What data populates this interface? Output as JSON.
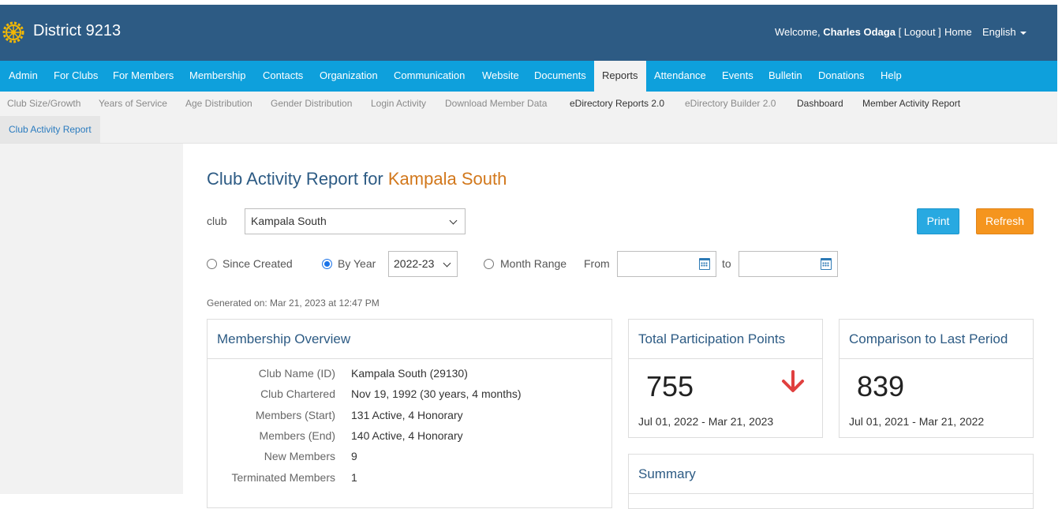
{
  "header": {
    "district_title": "District 9213",
    "welcome_prefix": "Welcome,",
    "user_name": "Charles Odaga",
    "logout": "[ Logout ]",
    "home": "Home",
    "language": "English",
    "logo_icon": "rotary-wheel-icon"
  },
  "mainnav": {
    "items": [
      "Admin",
      "For Clubs",
      "For Members",
      "Membership",
      "Contacts",
      "Organization",
      "Communication",
      "Website",
      "Documents",
      "Reports",
      "Attendance",
      "Events",
      "Bulletin",
      "Donations",
      "Help"
    ],
    "active": "Reports"
  },
  "subnav": {
    "items": [
      "Club Size/Growth",
      "Years of Service",
      "Age Distribution",
      "Gender Distribution",
      "Login Activity",
      "Download Member Data",
      "eDirectory Reports 2.0",
      "eDirectory Builder 2.0",
      "Dashboard",
      "Member Activity Report",
      "Club Activity Report"
    ],
    "active": "Club Activity Report"
  },
  "report": {
    "title_prefix": "Club Activity Report for",
    "club_name": "Kampala South",
    "club_label": "club",
    "club_selected": "Kampala South",
    "print": "Print",
    "refresh": "Refresh",
    "since_created": "Since Created",
    "by_year": "By Year",
    "year_selected": "2022-23",
    "month_range": "Month Range",
    "from": "From",
    "to": "to",
    "generated": "Generated on: Mar 21, 2023 at 12:47 PM"
  },
  "overview": {
    "title": "Membership Overview",
    "rows": [
      {
        "label": "Club Name (ID)",
        "value": "Kampala South (29130)"
      },
      {
        "label": "Club Chartered",
        "value": "Nov 19, 1992 (30 years, 4 months)"
      },
      {
        "label": "Members (Start)",
        "value": "131 Active, 4 Honorary"
      },
      {
        "label": "Members (End)",
        "value": "140 Active, 4 Honorary"
      },
      {
        "label": "New Members",
        "value": "9"
      },
      {
        "label": "Terminated Members",
        "value": "1"
      }
    ]
  },
  "points": {
    "title": "Total Participation Points",
    "value": "755",
    "range": "Jul 01, 2022 - Mar 21, 2023",
    "trend_icon": "arrow-down-icon",
    "trend_color": "#e0403f"
  },
  "comparison": {
    "title": "Comparison to Last Period",
    "value": "839",
    "range": "Jul 01, 2021 - Mar 21, 2022"
  },
  "summary": {
    "title": "Summary"
  },
  "colors": {
    "header_bg": "#2d5b84",
    "nav_bg": "#0ea0dc",
    "accent_orange": "#d2781c",
    "print_btn": "#28a9e1",
    "refresh_btn": "#f5951e"
  }
}
